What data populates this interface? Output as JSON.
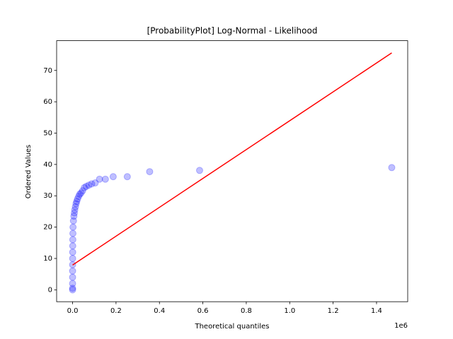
{
  "chart_data": {
    "type": "scatter",
    "title": "[ProbabilityPlot] Log-Normal - Likelihood",
    "x_label": "Theoretical quantiles",
    "y_label": "Ordered Values",
    "x_offset_label": "1e6",
    "xlim": [
      -73500,
      1543500
    ],
    "ylim": [
      -3.8,
      79.5
    ],
    "xticks": [
      {
        "value": 0,
        "label": "0.0"
      },
      {
        "value": 200000,
        "label": "0.2"
      },
      {
        "value": 400000,
        "label": "0.4"
      },
      {
        "value": 600000,
        "label": "0.6"
      },
      {
        "value": 800000,
        "label": "0.8"
      },
      {
        "value": 1000000,
        "label": "1.0"
      },
      {
        "value": 1200000,
        "label": "1.2"
      },
      {
        "value": 1400000,
        "label": "1.4"
      }
    ],
    "yticks": [
      0,
      10,
      20,
      30,
      40,
      50,
      60,
      70
    ],
    "grid": false,
    "series": [
      {
        "mark": "marker",
        "color": "#0000ff",
        "alpha": 0.25,
        "x": [
          1,
          5,
          20,
          50,
          100,
          200,
          300,
          500,
          700,
          1000,
          1500,
          2000,
          4000,
          6000,
          8000,
          10000,
          13000,
          16000,
          19000,
          23000,
          28000,
          33000,
          39000,
          46000,
          54000,
          63000,
          75000,
          88000,
          104000,
          124000,
          151000,
          187000,
          252000,
          355000,
          585000,
          1470000
        ],
        "values": [
          0,
          0.5,
          2,
          4,
          6,
          8,
          10,
          12,
          14,
          16,
          18,
          20,
          22,
          23.5,
          24.5,
          25.5,
          26.5,
          27.5,
          28.2,
          29,
          29.8,
          30.5,
          30.9,
          31.6,
          32.6,
          33,
          33.4,
          33.8,
          34.1,
          35.3,
          35.3,
          36.1,
          36.1,
          37.7,
          38.1,
          39
        ]
      },
      {
        "mark": "line",
        "color": "#ff0000",
        "x": [
          0,
          1470000
        ],
        "values": [
          7.9,
          75.6
        ]
      }
    ]
  }
}
